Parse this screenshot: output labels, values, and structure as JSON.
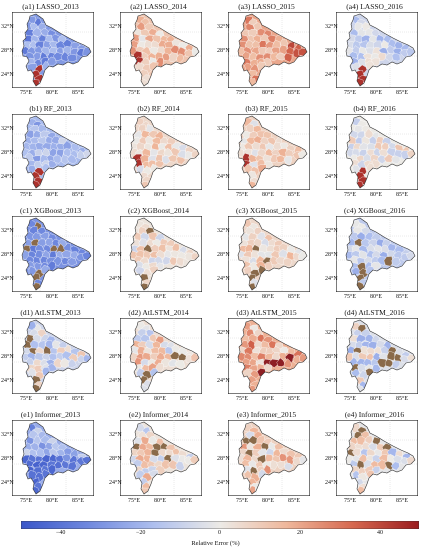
{
  "panels": [
    {
      "label": "(a1) LASSO_2013",
      "bias": -28,
      "spread": 12,
      "hot": "south-red"
    },
    {
      "label": "(a2) LASSO_2014",
      "bias": 12,
      "spread": 14,
      "hot": "west-red"
    },
    {
      "label": "(a3) LASSO_2015",
      "bias": 20,
      "spread": 12,
      "hot": "east-red"
    },
    {
      "label": "(a4) LASSO_2016",
      "bias": -8,
      "spread": 14,
      "hot": "south-red"
    },
    {
      "label": "(b1) RF_2013",
      "bias": -18,
      "spread": 12,
      "hot": "south-red"
    },
    {
      "label": "(b2) RF_2014",
      "bias": 6,
      "spread": 12,
      "hot": "west-red"
    },
    {
      "label": "(b3) RF_2015",
      "bias": 8,
      "spread": 12,
      "hot": "west-red"
    },
    {
      "label": "(b4) RF_2016",
      "bias": 0,
      "spread": 12,
      "hot": "south-red"
    },
    {
      "label": "(c1) XGBoost_2013",
      "bias": -30,
      "spread": 8,
      "hot": "south-brown"
    },
    {
      "label": "(c2) XGBoost_2014",
      "bias": 2,
      "spread": 12,
      "hot": "south-brown"
    },
    {
      "label": "(c3) XGBoost_2015",
      "bias": 6,
      "spread": 12,
      "hot": "south-brown"
    },
    {
      "label": "(c4) XGBoost_2016",
      "bias": -12,
      "spread": 12,
      "hot": "south-brown"
    },
    {
      "label": "(d1) AtLSTM_2013",
      "bias": -8,
      "spread": 20,
      "hot": "mixed-brown"
    },
    {
      "label": "(d2) AtLSTM_2014",
      "bias": 4,
      "spread": 20,
      "hot": "mixed-brown"
    },
    {
      "label": "(d3) AtLSTM_2015",
      "bias": 18,
      "spread": 18,
      "hot": "mixed-red"
    },
    {
      "label": "(d4) AtLSTM_2016",
      "bias": -4,
      "spread": 18,
      "hot": "mixed-brown"
    },
    {
      "label": "(e1) Informer_2013",
      "bias": -22,
      "spread": 16,
      "hot": "south-blue"
    },
    {
      "label": "(e2) Informer_2014",
      "bias": 2,
      "spread": 18,
      "hot": "mixed-brown"
    },
    {
      "label": "(e3) Informer_2015",
      "bias": 8,
      "spread": 18,
      "hot": "mixed-brown"
    },
    {
      "label": "(e4) Informer_2016",
      "bias": -2,
      "spread": 18,
      "hot": "mixed-brown"
    }
  ],
  "axes": {
    "y_ticks": [
      "32°N",
      "28°N",
      "24°N"
    ],
    "x_ticks": [
      "75°E",
      "80°E",
      "85°E"
    ]
  },
  "colorbar": {
    "label": "Relative Error (%)",
    "ticks": [
      "−40",
      "−20",
      "0",
      "20",
      "40"
    ],
    "range": [
      -50,
      50
    ],
    "colors": [
      "#3a56c8",
      "#6f88de",
      "#aebfee",
      "#eceae6",
      "#efb79b",
      "#d6684f",
      "#9a1b1e"
    ]
  }
}
